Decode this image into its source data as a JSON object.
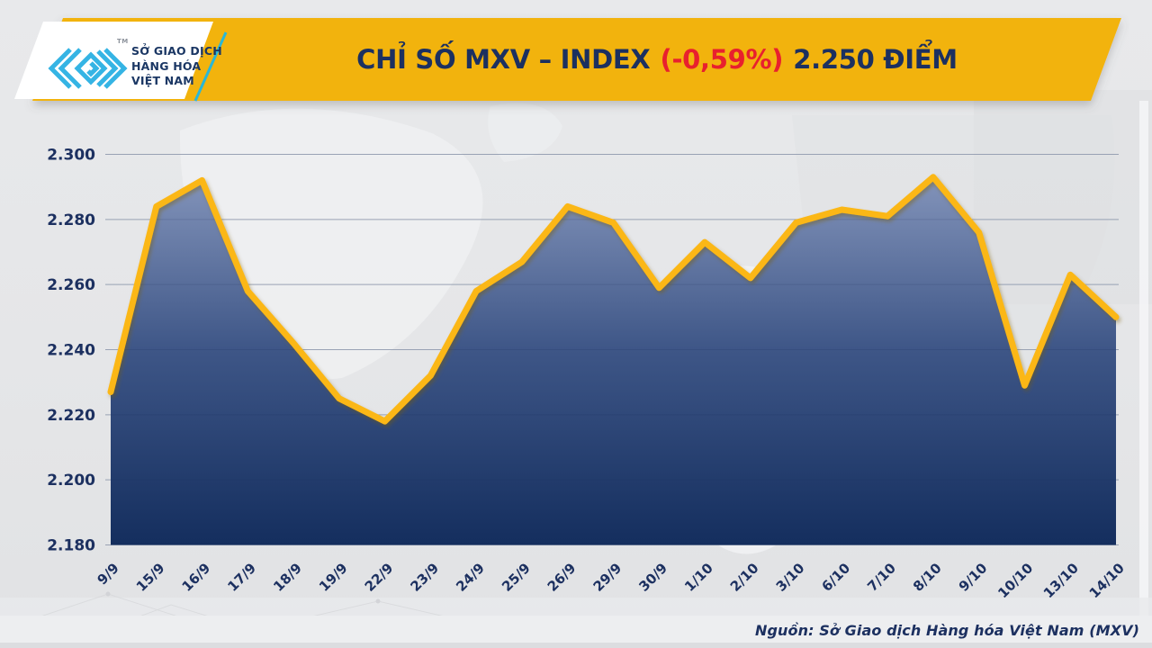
{
  "theme": {
    "banner_color": "#F2B30E",
    "navy": "#1C3060",
    "red": "#E8202E",
    "logo_cyan": "#35B4E4",
    "line_yellow": "#FBB713",
    "gridline_gray": "#AEB6C3"
  },
  "header": {
    "title_main": "CHỈ SỐ MXV – INDEX",
    "title_change": "(-0,59%)",
    "title_points": "2.250 ĐIỂM"
  },
  "logo": {
    "org_line1": "SỞ GIAO DỊCH",
    "org_line2": "HÀNG HÓA",
    "org_line3": "VIỆT NAM",
    "trademark": "TM"
  },
  "footer": {
    "source_text": "Nguồn: Sở Giao dịch Hàng hóa Việt Nam (MXV)"
  },
  "chart_data": {
    "type": "area",
    "title": "CHỈ SỐ MXV – INDEX (-0,59%) 2.250 ĐIỂM",
    "xlabel": "",
    "ylabel": "",
    "categories": [
      "9/9",
      "15/9",
      "16/9",
      "17/9",
      "18/9",
      "19/9",
      "22/9",
      "23/9",
      "24/9",
      "25/9",
      "26/9",
      "29/9",
      "30/9",
      "1/10",
      "2/10",
      "3/10",
      "6/10",
      "7/10",
      "8/10",
      "9/10",
      "10/10",
      "13/10",
      "14/10"
    ],
    "values": [
      2227,
      2284,
      2292,
      2258,
      2242,
      2225,
      2218,
      2232,
      2258,
      2267,
      2284,
      2279,
      2259,
      2273,
      2262,
      2279,
      2283,
      2281,
      2293,
      2276,
      2229,
      2263,
      2250
    ],
    "unit": "điểm",
    "ylim": [
      2180,
      2300
    ],
    "y_tick_values": [
      2180,
      2200,
      2220,
      2240,
      2260,
      2280,
      2300
    ],
    "y_tick_labels": [
      "2.180",
      "2.200",
      "2.220",
      "2.240",
      "2.260",
      "2.280",
      "2.300"
    ],
    "grid": "horizontal",
    "legend": "none",
    "line_color": "#FBB713",
    "area_gradient": [
      "#8C9CC1",
      "#3E5687",
      "#142E5E"
    ],
    "label_color": "#1C3060"
  }
}
